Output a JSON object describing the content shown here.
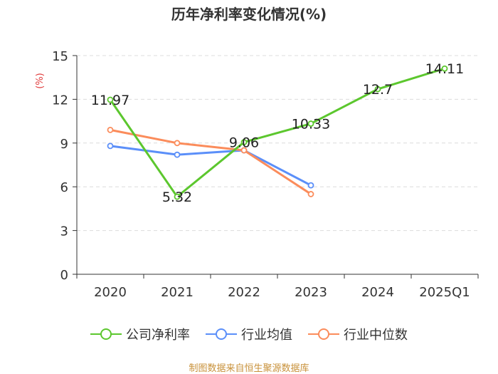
{
  "chart_data": {
    "type": "line",
    "title": "历年净利率变化情况(%)",
    "ylabel": "(%)",
    "xlabel": "",
    "categories": [
      "2020",
      "2021",
      "2022",
      "2023",
      "2024",
      "2025Q1"
    ],
    "ylim": [
      0,
      15
    ],
    "yticks": [
      0,
      3,
      6,
      9,
      12,
      15
    ],
    "grid": true,
    "legend_position": "bottom",
    "series": [
      {
        "name": "公司净利率",
        "color": "#5cc72e",
        "values": [
          11.97,
          5.32,
          9.06,
          10.33,
          12.7,
          14.11
        ],
        "labels": [
          "11.97",
          "5.32",
          "9.06",
          "10.33",
          "12.7",
          "14.11"
        ]
      },
      {
        "name": "行业均值",
        "color": "#5b8ff9",
        "values": [
          8.8,
          8.2,
          8.5,
          6.1,
          null,
          null
        ]
      },
      {
        "name": "行业中位数",
        "color": "#fb8c5b",
        "values": [
          9.9,
          9.0,
          8.5,
          5.5,
          null,
          null
        ]
      }
    ]
  },
  "footer": {
    "source": "制图数据来自恒生聚源数据库"
  }
}
